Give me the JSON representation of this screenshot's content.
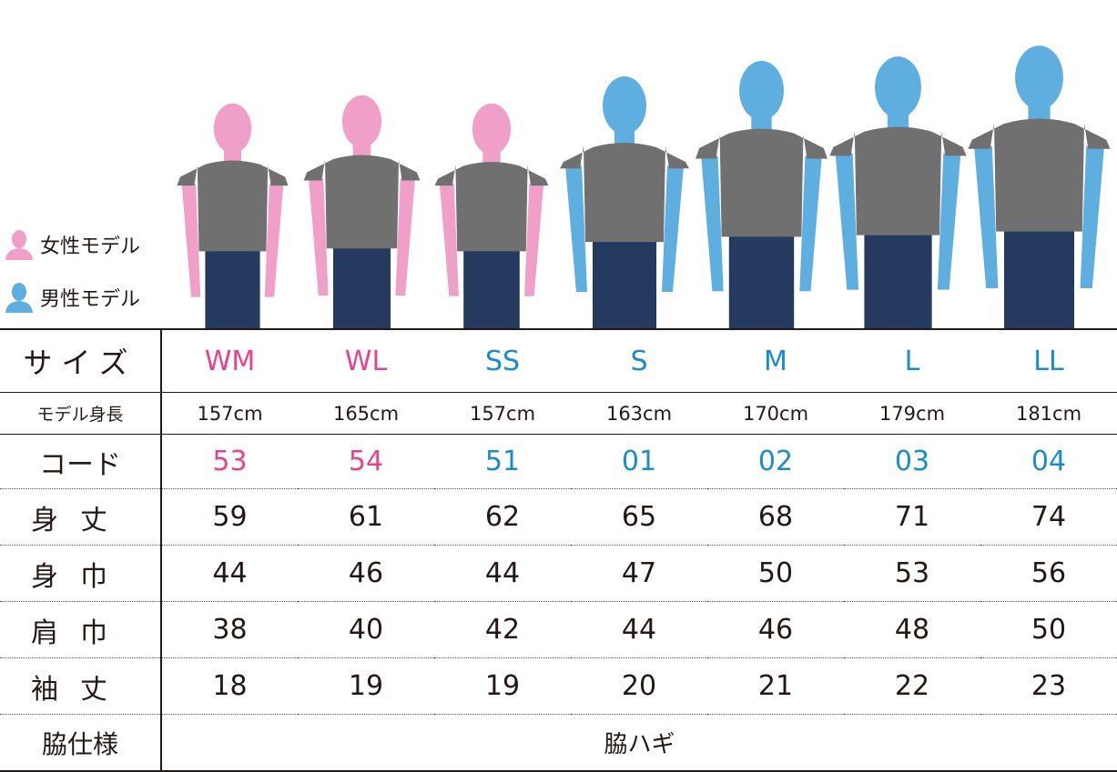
{
  "colors": {
    "female": "#f0a0c8",
    "male": "#5faee0",
    "female_text": "#e6438e",
    "male_text": "#1a8bd0",
    "shirt": "#707070",
    "jeans": "#243a5e"
  },
  "legend": {
    "female": {
      "icon": "female-person-icon",
      "label": "女性モデル"
    },
    "male": {
      "icon": "male-person-icon",
      "label": "男性モデル"
    }
  },
  "models": [
    {
      "size": "WM",
      "gender": "female"
    },
    {
      "size": "WL",
      "gender": "female"
    },
    {
      "size": "SS",
      "gender": "female"
    },
    {
      "size": "S",
      "gender": "male"
    },
    {
      "size": "M",
      "gender": "male"
    },
    {
      "size": "L",
      "gender": "male"
    },
    {
      "size": "LL",
      "gender": "male"
    }
  ],
  "table": {
    "labels": {
      "size": "サイズ",
      "height": "モデル身長",
      "code": "コード",
      "length": "身丈",
      "width": "身巾",
      "shoulder": "肩巾",
      "sleeve": "袖丈",
      "gusset": "脇仕様"
    },
    "sizes": [
      "WM",
      "WL",
      "SS",
      "S",
      "M",
      "L",
      "LL"
    ],
    "heights": [
      "157cm",
      "165cm",
      "157cm",
      "163cm",
      "170cm",
      "179cm",
      "181cm"
    ],
    "codes": [
      "53",
      "54",
      "51",
      "01",
      "02",
      "03",
      "04"
    ],
    "length": [
      "59",
      "61",
      "62",
      "65",
      "68",
      "71",
      "74"
    ],
    "width": [
      "44",
      "46",
      "44",
      "47",
      "50",
      "53",
      "56"
    ],
    "shoulder": [
      "38",
      "40",
      "42",
      "44",
      "46",
      "48",
      "50"
    ],
    "sleeve": [
      "18",
      "19",
      "19",
      "20",
      "21",
      "22",
      "23"
    ],
    "gusset": "脇ハギ"
  }
}
